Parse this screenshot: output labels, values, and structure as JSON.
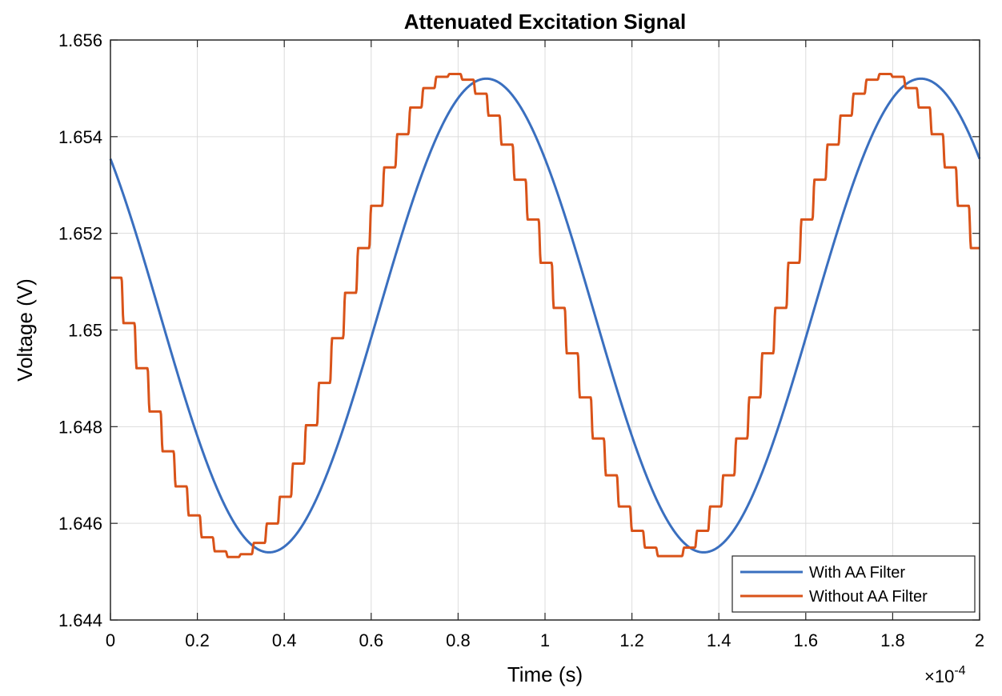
{
  "chart_data": {
    "type": "line",
    "title": "Attenuated Excitation Signal",
    "xlabel": "Time (s)",
    "ylabel": "Voltage (V)",
    "x_exponent_label": "×10",
    "x_exponent_power": "-4",
    "xlim": [
      0,
      2
    ],
    "ylim": [
      1.644,
      1.656
    ],
    "x_ticks": [
      "0",
      "0.2",
      "0.4",
      "0.6",
      "0.8",
      "1",
      "1.2",
      "1.4",
      "1.6",
      "1.8",
      "2"
    ],
    "y_ticks": [
      "1.644",
      "1.646",
      "1.648",
      "1.65",
      "1.652",
      "1.654",
      "1.656"
    ],
    "grid": true,
    "legend_position": "bottom-right",
    "x_unit_multiplier": 0.0001,
    "series": [
      {
        "name": "With AA Filter",
        "color": "#3a6fbf",
        "center": 1.6503,
        "amplitude": 0.0049,
        "period": 1.0,
        "peak_x": 0.865,
        "stepped": false
      },
      {
        "name": "Without AA Filter",
        "color": "#d95319",
        "center": 1.6503,
        "amplitude": 0.005,
        "period": 1.0,
        "peak_x": 0.775,
        "stepped": true,
        "step_width": 0.03
      }
    ]
  }
}
